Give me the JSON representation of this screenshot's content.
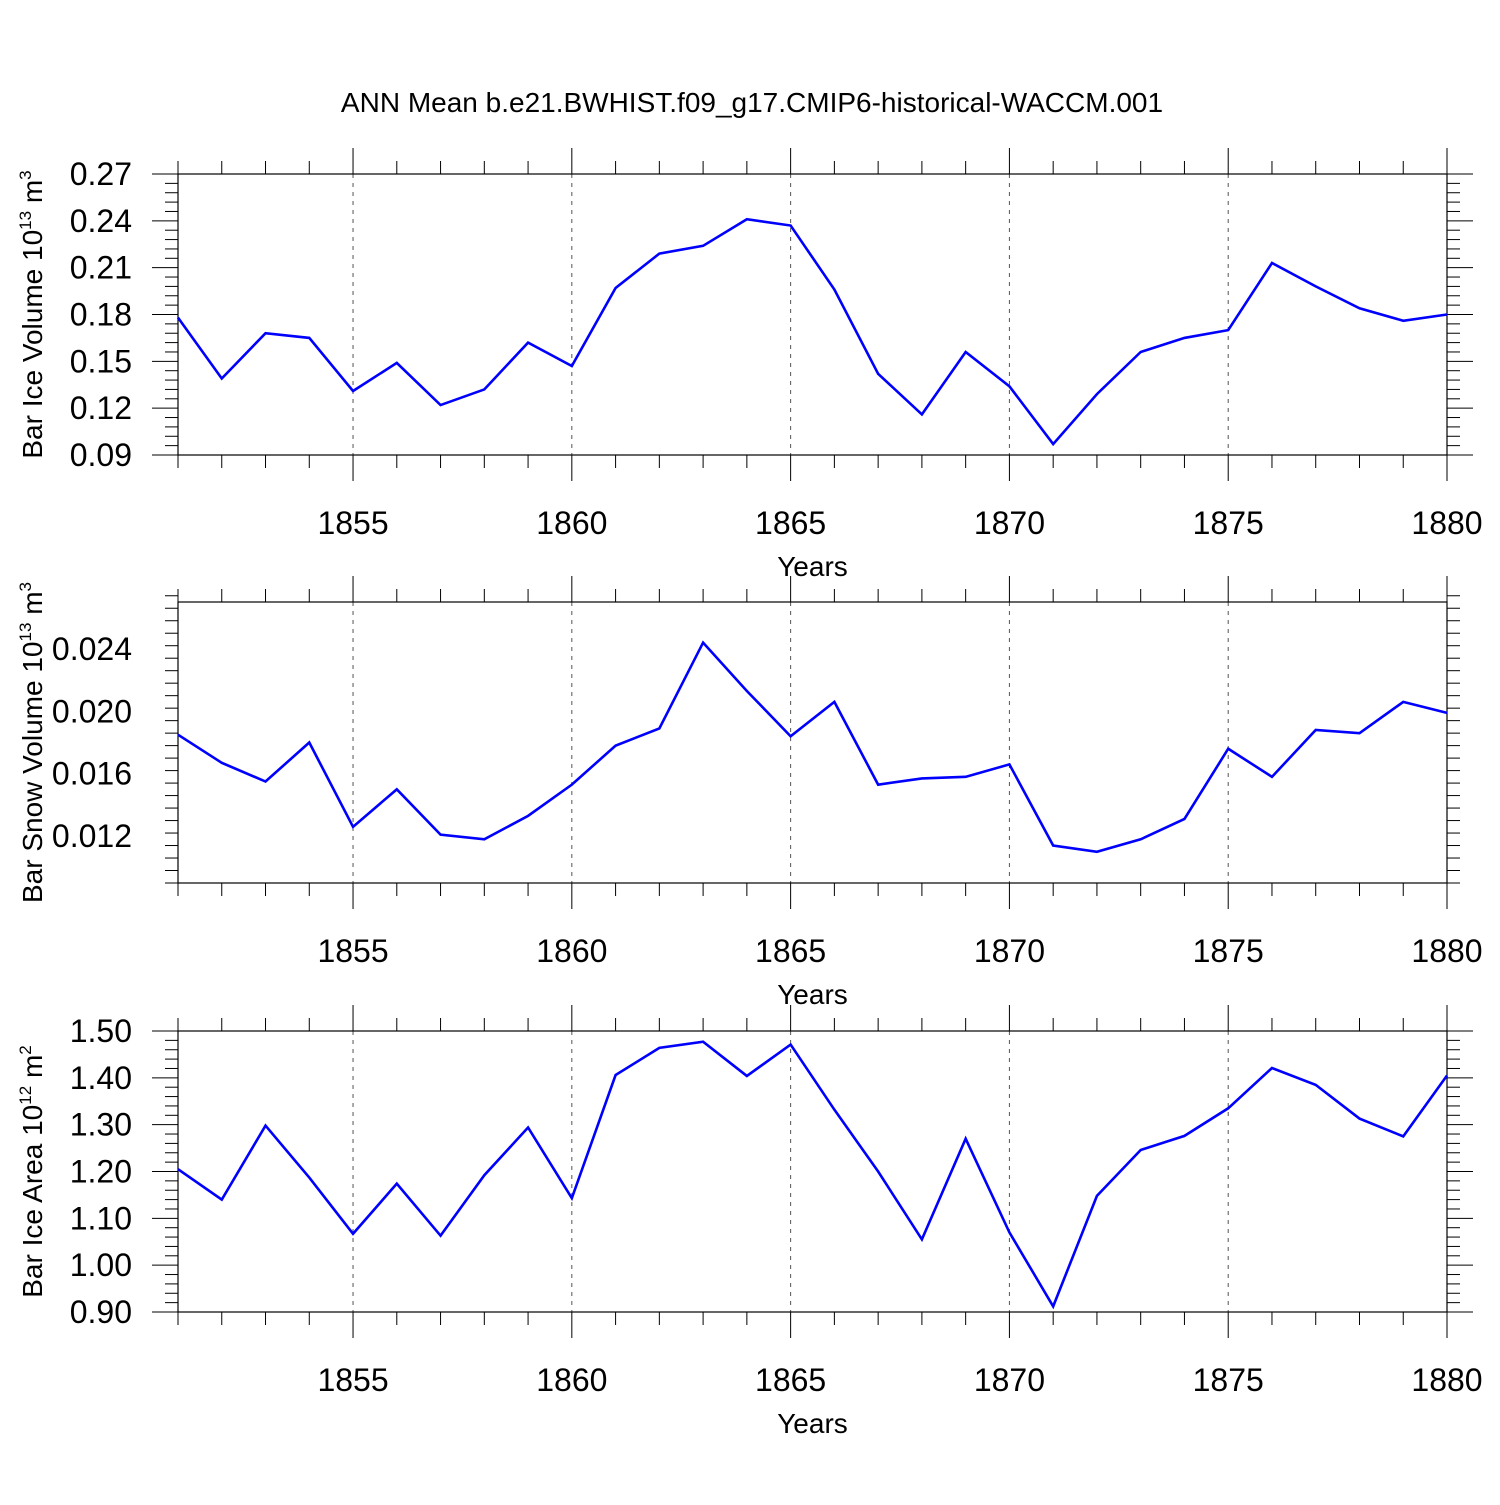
{
  "figure": {
    "title": "ANN Mean b.e21.BWHIST.f09_g17.CMIP6-historical-WACCM.001",
    "line_color": "#0000ff",
    "grid_color": "#555555",
    "background_color": "#ffffff"
  },
  "chart_data": [
    {
      "type": "line",
      "title": "ANN Mean b.e21.BWHIST.f09_g17.CMIP6-historical-WACCM.001",
      "xlabel": "Years",
      "ylabel": "Bar Ice Volume 10",
      "ylabel_exponent": "13",
      "ylabel_unit": " m",
      "ylabel_unit_exponent": "3",
      "xlim": [
        1851,
        1880
      ],
      "ylim": [
        0.09,
        0.27
      ],
      "xticks": [
        1855,
        1860,
        1865,
        1870,
        1875,
        1880
      ],
      "xtick_labels": [
        "1855",
        "1860",
        "1865",
        "1870",
        "1875",
        "1880"
      ],
      "yticks": [
        0.09,
        0.12,
        0.15,
        0.18,
        0.21,
        0.24,
        0.27
      ],
      "ytick_labels": [
        "0.09",
        "0.12",
        "0.15",
        "0.18",
        "0.21",
        "0.24",
        "0.27"
      ],
      "grid": "vertical dashed at major x ticks",
      "x": [
        1851,
        1852,
        1853,
        1854,
        1855,
        1856,
        1857,
        1858,
        1859,
        1860,
        1861,
        1862,
        1863,
        1864,
        1865,
        1866,
        1867,
        1868,
        1869,
        1870,
        1871,
        1872,
        1873,
        1874,
        1875,
        1876,
        1877,
        1878,
        1879,
        1880
      ],
      "series": [
        {
          "values": [
            0.178,
            0.139,
            0.168,
            0.165,
            0.131,
            0.149,
            0.122,
            0.132,
            0.162,
            0.147,
            0.197,
            0.219,
            0.224,
            0.241,
            0.237,
            0.196,
            0.142,
            0.116,
            0.156,
            0.134,
            0.097,
            0.129,
            0.156,
            0.165,
            0.17,
            0.213,
            0.198,
            0.184,
            0.176,
            0.18
          ]
        }
      ]
    },
    {
      "type": "line",
      "xlabel": "Years",
      "ylabel": "Bar Snow Volume 10",
      "ylabel_exponent": "13",
      "ylabel_unit": " m",
      "ylabel_unit_exponent": "3",
      "xlim": [
        1851,
        1880
      ],
      "ylim": [
        0.009,
        0.027
      ],
      "xticks": [
        1855,
        1860,
        1865,
        1870,
        1875,
        1880
      ],
      "xtick_labels": [
        "1855",
        "1860",
        "1865",
        "1870",
        "1875",
        "1880"
      ],
      "yticks": [
        0.012,
        0.016,
        0.02,
        0.024
      ],
      "ytick_labels": [
        "0.012",
        "0.016",
        "0.020",
        "0.024"
      ],
      "grid": "vertical dashed at major x ticks",
      "x": [
        1851,
        1852,
        1853,
        1854,
        1855,
        1856,
        1857,
        1858,
        1859,
        1860,
        1861,
        1862,
        1863,
        1864,
        1865,
        1866,
        1867,
        1868,
        1869,
        1870,
        1871,
        1872,
        1873,
        1874,
        1875,
        1876,
        1877,
        1878,
        1879,
        1880
      ],
      "series": [
        {
          "values": [
            0.0185,
            0.0167,
            0.0155,
            0.018,
            0.0126,
            0.015,
            0.0121,
            0.0118,
            0.0133,
            0.0153,
            0.0178,
            0.0189,
            0.0244,
            0.0213,
            0.0184,
            0.0206,
            0.0153,
            0.0157,
            0.0158,
            0.0166,
            0.0114,
            0.011,
            0.0118,
            0.0131,
            0.0176,
            0.0158,
            0.0188,
            0.0186,
            0.0206,
            0.0199
          ]
        }
      ]
    },
    {
      "type": "line",
      "xlabel": "Years",
      "ylabel": "Bar Ice Area 10",
      "ylabel_exponent": "12",
      "ylabel_unit": " m",
      "ylabel_unit_exponent": "2",
      "xlim": [
        1851,
        1880
      ],
      "ylim": [
        0.9,
        1.5
      ],
      "xticks": [
        1855,
        1860,
        1865,
        1870,
        1875,
        1880
      ],
      "xtick_labels": [
        "1855",
        "1860",
        "1865",
        "1870",
        "1875",
        "1880"
      ],
      "yticks": [
        0.9,
        1.0,
        1.1,
        1.2,
        1.3,
        1.4,
        1.5
      ],
      "ytick_labels": [
        "0.90",
        "1.00",
        "1.10",
        "1.20",
        "1.30",
        "1.40",
        "1.50"
      ],
      "grid": "vertical dashed at major x ticks",
      "x": [
        1851,
        1852,
        1853,
        1854,
        1855,
        1856,
        1857,
        1858,
        1859,
        1860,
        1861,
        1862,
        1863,
        1864,
        1865,
        1866,
        1867,
        1868,
        1869,
        1870,
        1871,
        1872,
        1873,
        1874,
        1875,
        1876,
        1877,
        1878,
        1879,
        1880
      ],
      "series": [
        {
          "values": [
            1.205,
            1.14,
            1.298,
            1.187,
            1.067,
            1.174,
            1.063,
            1.192,
            1.294,
            1.143,
            1.406,
            1.464,
            1.477,
            1.404,
            1.471,
            1.332,
            1.2,
            1.055,
            1.27,
            1.07,
            0.912,
            1.148,
            1.246,
            1.276,
            1.335,
            1.421,
            1.385,
            1.313,
            1.275,
            1.405
          ]
        }
      ]
    }
  ]
}
